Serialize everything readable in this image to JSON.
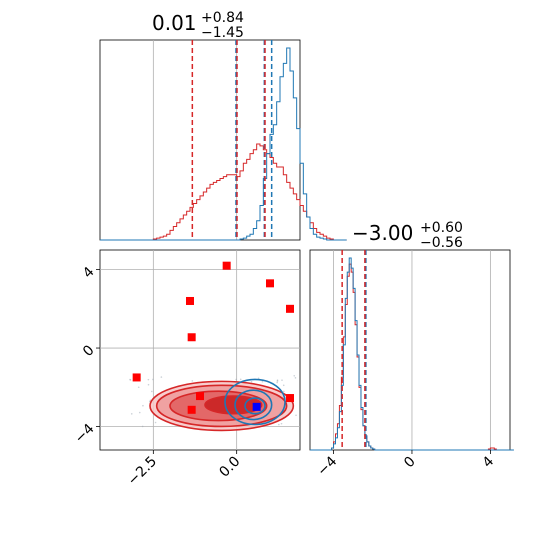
{
  "colors": {
    "blue": "#1f77b4",
    "red": "#d62728",
    "marker_red": "#ff0000",
    "marker_blue": "#0000ff",
    "grid": "#b0b0b0"
  },
  "titles": {
    "p1": {
      "main": "0.01",
      "sup": "+0.84",
      "sub": "−1.45"
    },
    "p2": {
      "main": "−3.00",
      "sup": "+0.60",
      "sub": "−0.56"
    }
  },
  "ticks": {
    "p1": [
      {
        "value": -2.5,
        "label": "−2.5"
      },
      {
        "value": 0.0,
        "label": "0.0"
      }
    ],
    "p2": [
      {
        "value": -4,
        "label": "−4"
      },
      {
        "value": 0,
        "label": "0"
      },
      {
        "value": 4,
        "label": "4"
      }
    ]
  },
  "chart_data": {
    "type": "corner",
    "grid": true,
    "ranges": {
      "p1": [
        -4.1,
        1.9
      ],
      "p2": [
        -5.2,
        5.0
      ]
    },
    "quantiles": {
      "blue_p1": [
        -0.02,
        0.83,
        1.05
      ],
      "red_p1": [
        -1.33,
        0.01,
        0.85
      ],
      "blue_p2": [
        -2.35
      ],
      "red_p2": [
        -3.56,
        -2.4
      ]
    },
    "hist_p1": {
      "bin_start": -4.1,
      "bin_width": 0.1,
      "blue": [
        0,
        0,
        0,
        0,
        0,
        0,
        0,
        0,
        0,
        0,
        0,
        0,
        0,
        0,
        0,
        0,
        0,
        0,
        0,
        0,
        0,
        0,
        0,
        0,
        0,
        0,
        0,
        0,
        0,
        0,
        0,
        0,
        0,
        0,
        0,
        0,
        0,
        0,
        0,
        0,
        0,
        0,
        0.005,
        0.01,
        0.02,
        0.03,
        0.06,
        0.1,
        0.18,
        0.32,
        0.45,
        0.55,
        0.6,
        0.72,
        0.85,
        0.92,
        1.0,
        0.88,
        0.74,
        0.58,
        0.4,
        0.24,
        0.12,
        0.06,
        0.03,
        0.015,
        0.01,
        0.005,
        0,
        0,
        0,
        0,
        0,
        0
      ],
      "red": [
        0,
        0,
        0,
        0,
        0,
        0,
        0,
        0,
        0,
        0,
        0,
        0,
        0,
        0,
        0,
        0,
        0.005,
        0.01,
        0.015,
        0.02,
        0.03,
        0.05,
        0.07,
        0.09,
        0.11,
        0.13,
        0.15,
        0.17,
        0.19,
        0.21,
        0.23,
        0.25,
        0.27,
        0.29,
        0.3,
        0.31,
        0.32,
        0.33,
        0.34,
        0.34,
        0.34,
        0.33,
        0.36,
        0.4,
        0.42,
        0.45,
        0.47,
        0.5,
        0.49,
        0.47,
        0.45,
        0.43,
        0.4,
        0.38,
        0.38,
        0.34,
        0.3,
        0.27,
        0.24,
        0.21,
        0.18,
        0.15,
        0.12,
        0.09,
        0.06,
        0.04,
        0.03,
        0.02,
        0.01,
        0.005,
        0,
        0,
        0,
        0
      ]
    },
    "hist_p2": {
      "bin_start": -5.2,
      "bin_width": 0.1,
      "blue": [
        0,
        0,
        0,
        0,
        0,
        0,
        0,
        0,
        0,
        0,
        0,
        0.01,
        0.03,
        0.06,
        0.11,
        0.19,
        0.32,
        0.52,
        0.75,
        0.88,
        0.95,
        0.9,
        0.8,
        0.64,
        0.47,
        0.32,
        0.21,
        0.12,
        0.07,
        0.04,
        0.02,
        0.01,
        0.005,
        0,
        0,
        0,
        0,
        0,
        0,
        0,
        0,
        0,
        0,
        0,
        0,
        0,
        0,
        0,
        0,
        0,
        0,
        0,
        0,
        0,
        0,
        0,
        0,
        0,
        0,
        0,
        0,
        0,
        0,
        0,
        0,
        0,
        0,
        0,
        0,
        0,
        0,
        0,
        0,
        0,
        0,
        0,
        0,
        0,
        0,
        0,
        0,
        0,
        0,
        0,
        0,
        0,
        0,
        0,
        0,
        0,
        0,
        0,
        0,
        0,
        0,
        0,
        0,
        0,
        0,
        0,
        0,
        0,
        0,
        0
      ],
      "red": [
        0,
        0,
        0,
        0,
        0,
        0,
        0,
        0,
        0,
        0,
        0,
        0.01,
        0.04,
        0.08,
        0.13,
        0.22,
        0.36,
        0.56,
        0.72,
        0.86,
        0.92,
        0.88,
        0.78,
        0.62,
        0.46,
        0.31,
        0.2,
        0.12,
        0.07,
        0.04,
        0.02,
        0.01,
        0.005,
        0,
        0,
        0,
        0,
        0,
        0,
        0,
        0,
        0,
        0,
        0,
        0,
        0,
        0,
        0,
        0,
        0,
        0,
        0,
        0,
        0,
        0,
        0,
        0,
        0,
        0,
        0,
        0,
        0,
        0,
        0,
        0,
        0,
        0,
        0,
        0,
        0,
        0,
        0,
        0,
        0,
        0,
        0,
        0,
        0,
        0,
        0,
        0,
        0,
        0,
        0,
        0,
        0,
        0,
        0,
        0,
        0,
        0,
        0.005,
        0.01,
        0.01,
        0.005,
        0,
        0,
        0,
        0,
        0,
        0,
        0,
        0
      ]
    },
    "contours": {
      "red": [
        {
          "cx": -0.45,
          "cy": -2.95,
          "rx": 2.15,
          "ry": 1.25
        },
        {
          "cx": -0.45,
          "cy": -2.95,
          "rx": 1.95,
          "ry": 1.05
        },
        {
          "cx": -0.55,
          "cy": -2.95,
          "rx": 1.45,
          "ry": 0.75
        },
        {
          "cx": -0.1,
          "cy": -2.9,
          "rx": 0.85,
          "ry": 0.45
        }
      ],
      "blue": [
        {
          "cx": 0.55,
          "cy": -2.75,
          "rx": 0.9,
          "ry": 1.15
        },
        {
          "cx": 0.5,
          "cy": -2.9,
          "rx": 0.55,
          "ry": 0.75
        },
        {
          "cx": 0.55,
          "cy": -2.95,
          "rx": 0.3,
          "ry": 0.4
        }
      ]
    },
    "red_points": [
      {
        "x": -0.3,
        "y": 4.2
      },
      {
        "x": 1.0,
        "y": 3.3
      },
      {
        "x": -1.4,
        "y": 2.4
      },
      {
        "x": 1.6,
        "y": 2.0
      },
      {
        "x": -1.35,
        "y": 0.55
      },
      {
        "x": -3.0,
        "y": -1.5
      },
      {
        "x": -1.1,
        "y": -2.45
      },
      {
        "x": 1.6,
        "y": -2.55
      },
      {
        "x": -1.35,
        "y": -3.15
      }
    ],
    "blue_point": {
      "x": 0.6,
      "y": -3.0
    }
  }
}
